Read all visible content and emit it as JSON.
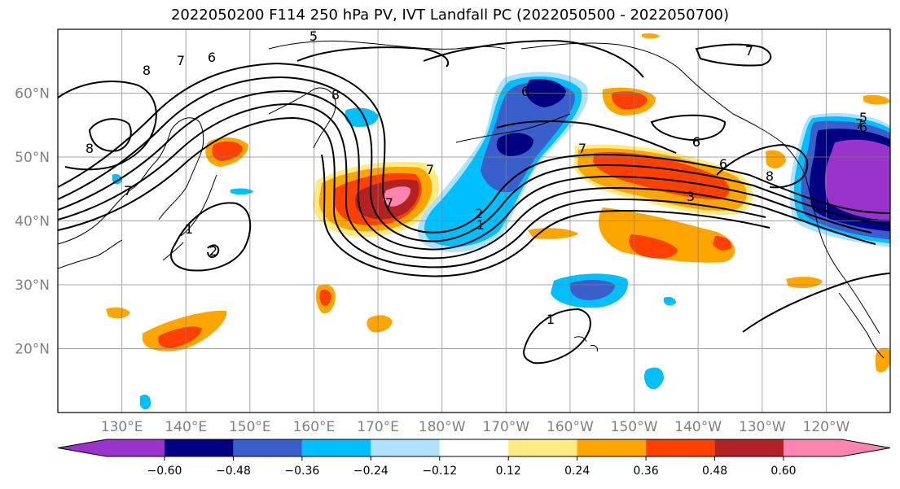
{
  "title": "2022050200 F114 250 hPa PV, IVT Landfall PC (2022050500 - 2022050700)",
  "map": {
    "lat_labels": [
      "60°N",
      "50°N",
      "40°N",
      "30°N",
      "20°N"
    ],
    "lon_labels": [
      "130°E",
      "140°E",
      "150°E",
      "160°E",
      "170°E",
      "180°W",
      "170°W",
      "160°W",
      "150°W",
      "140°W",
      "130°W",
      "120°W"
    ],
    "lat_values": [
      60,
      50,
      40,
      30,
      20
    ],
    "lon_values": [
      130,
      140,
      150,
      160,
      170,
      180,
      190,
      200,
      210,
      220,
      230,
      240
    ],
    "lon_range": [
      120,
      250
    ],
    "lat_range": [
      10,
      70
    ],
    "gridlines": true,
    "contour_labels": [
      "5",
      "6",
      "7",
      "8",
      "7",
      "6",
      "8",
      "6",
      "7",
      "6",
      "1",
      "2",
      "7",
      "7",
      "2",
      "1",
      "7",
      "3",
      "7",
      "6",
      "8",
      "8",
      "5",
      "6",
      "1"
    ]
  },
  "colorbar": {
    "colors": [
      "#9933cc",
      "#000080",
      "#3a5fcd",
      "#00bfff",
      "#b0e2ff",
      "#ffffff",
      "#ffeb82",
      "#ffa500",
      "#ff4000",
      "#b22222",
      "#ff85b0"
    ],
    "tick_labels": [
      "−0.60",
      "−0.48",
      "−0.36",
      "−0.24",
      "−0.12",
      "0.12",
      "0.24",
      "0.36",
      "0.48",
      "0.60"
    ],
    "tick_values": [
      -0.6,
      -0.48,
      -0.36,
      -0.24,
      -0.12,
      0.12,
      0.24,
      0.36,
      0.48,
      0.6
    ],
    "extend": "both",
    "orientation": "horizontal"
  }
}
